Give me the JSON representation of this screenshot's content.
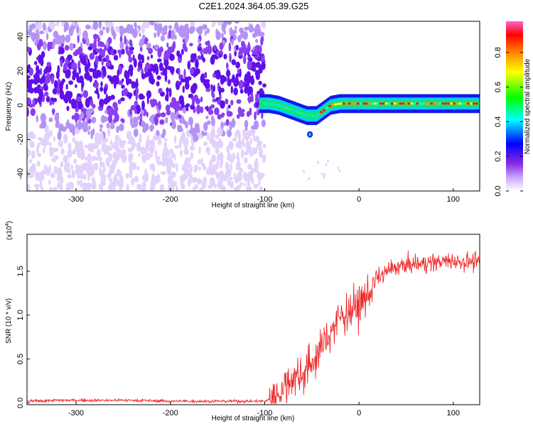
{
  "figure": {
    "title": "C2E1.2024.364.05.39.G25"
  },
  "chart_data": [
    {
      "type": "heatmap",
      "xlabel": "Height of straight line (km)",
      "ylabel": "Frequency (Hz)",
      "xlim": [
        -352,
        128
      ],
      "ylim": [
        -50,
        49
      ],
      "x_ticks": [
        -300,
        -200,
        -100,
        0,
        100
      ],
      "y_ticks": [
        -40,
        -20,
        0,
        20,
        40
      ],
      "colorbar": {
        "label": "Normalized spectral amplitude",
        "range": [
          0,
          0.98
        ],
        "ticks": [
          "0.0",
          "0.2",
          "0.4",
          "0.6",
          "0.8"
        ],
        "colors": [
          "#ffffff",
          "#c9a6ff",
          "#8a2be2",
          "#0000ff",
          "#00ffff",
          "#00ff00",
          "#ffff00",
          "#ff8000",
          "#ff0000",
          "#ff66cc"
        ]
      },
      "noise_region": {
        "x": [
          -352,
          -100
        ],
        "centroid_frequency_hz": 15
      },
      "signal_trace": {
        "x": [
          -105,
          -95,
          -85,
          -75,
          -65,
          -55,
          -45,
          -40,
          -30,
          -20,
          -10,
          0,
          20,
          50,
          80,
          110,
          128
        ],
        "y": [
          1,
          1,
          0,
          -2,
          -4,
          -6,
          -6,
          -4,
          0,
          1,
          1,
          1,
          1,
          1,
          1,
          1,
          1
        ]
      }
    },
    {
      "type": "line",
      "xlabel": "Height of straight line (km)",
      "ylabel": "SNR (10 * v/v)",
      "y_scale_label": "(x10",
      "y_scale_exponent": "4",
      "y_scale_suffix": ")",
      "xlim": [
        -352,
        128
      ],
      "ylim": [
        -0.02,
        1.92
      ],
      "x_ticks": [
        -300,
        -200,
        -100,
        0,
        100
      ],
      "y_ticks": [
        "0.0",
        "0.5",
        "1.0",
        "1.5"
      ],
      "series": [
        {
          "color": "#ee2a2a",
          "x": [
            -352,
            -320,
            -280,
            -240,
            -200,
            -160,
            -120,
            -100,
            -90,
            -80,
            -70,
            -60,
            -50,
            -40,
            -30,
            -20,
            -10,
            0,
            10,
            20,
            30,
            40,
            60,
            80,
            100,
            128
          ],
          "y": [
            0.02,
            0.03,
            0.03,
            0.03,
            0.02,
            0.02,
            0.02,
            0.02,
            0.06,
            0.18,
            0.3,
            0.33,
            0.45,
            0.62,
            0.82,
            0.98,
            1.05,
            1.1,
            1.25,
            1.42,
            1.5,
            1.55,
            1.58,
            1.6,
            1.62,
            1.6
          ]
        }
      ]
    }
  ]
}
